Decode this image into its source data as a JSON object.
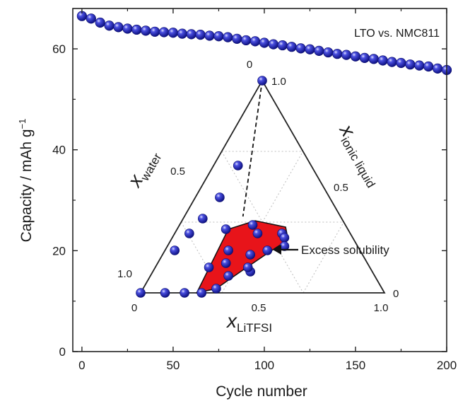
{
  "chart_data": [
    {
      "type": "scatter",
      "title": "",
      "legend": "LTO vs. NMC811",
      "xlabel": "Cycle number",
      "ylabel_main": "Capacity / mAh g",
      "ylabel_sup": "−1",
      "xlim": [
        -5,
        200
      ],
      "ylim": [
        0,
        68
      ],
      "xticks": [
        0,
        50,
        100,
        150,
        200
      ],
      "yticks": [
        0,
        20,
        40,
        60
      ],
      "grid": false,
      "series": [
        {
          "color": "#1f22b5",
          "x": [
            0,
            5,
            10,
            15,
            20,
            25,
            30,
            35,
            40,
            45,
            50,
            55,
            60,
            65,
            70,
            75,
            80,
            85,
            90,
            95,
            100,
            105,
            110,
            115,
            120,
            125,
            130,
            135,
            140,
            145,
            150,
            155,
            160,
            165,
            170,
            175,
            180,
            185,
            190,
            195,
            200
          ],
          "y": [
            66.5,
            66.0,
            65.2,
            64.6,
            64.3,
            64.0,
            63.8,
            63.6,
            63.4,
            63.3,
            63.2,
            63.0,
            62.9,
            62.8,
            62.6,
            62.5,
            62.3,
            62.0,
            61.7,
            61.5,
            61.2,
            60.9,
            60.7,
            60.4,
            60.1,
            59.9,
            59.6,
            59.3,
            59.0,
            58.8,
            58.5,
            58.2,
            58.0,
            57.7,
            57.4,
            57.2,
            56.9,
            56.7,
            56.5,
            56.1,
            55.8
          ]
        }
      ]
    },
    {
      "type": "ternary",
      "axes": {
        "left": {
          "label": "x",
          "sub": "water",
          "ticks": [
            "0",
            "0.5",
            "1.0"
          ]
        },
        "right": {
          "label": "x",
          "sub": "ionic liquid",
          "ticks": [
            "0.5",
            "0"
          ]
        },
        "bottom": {
          "label": "x",
          "sub": "LiTFSI",
          "ticks": [
            "0",
            "0.5",
            "1.0"
          ]
        },
        "apex_label": "1.0"
      },
      "annotation": "Excess solubility",
      "region_color": "#e8141a",
      "points_note": "compositions given as (x_LiTFSI, x_ionic_liquid)",
      "points": [
        [
          0.0,
          1.0
        ],
        [
          0.0,
          0.0
        ],
        [
          0.1,
          0.0
        ],
        [
          0.18,
          0.0
        ],
        [
          0.25,
          0.0
        ],
        [
          0.04,
          0.2
        ],
        [
          0.06,
          0.28
        ],
        [
          0.08,
          0.35
        ],
        [
          0.1,
          0.45
        ],
        [
          0.2,
          0.3
        ],
        [
          0.1,
          0.6
        ],
        [
          0.22,
          0.12
        ],
        [
          0.26,
          0.2
        ],
        [
          0.3,
          0.32
        ],
        [
          0.34,
          0.28
        ],
        [
          0.36,
          0.18
        ],
        [
          0.4,
          0.1
        ],
        [
          0.42,
          0.2
        ],
        [
          0.44,
          0.28
        ],
        [
          0.46,
          0.26
        ],
        [
          0.32,
          0.08
        ],
        [
          0.3,
          0.02
        ],
        [
          0.38,
          0.12
        ],
        [
          0.48,
          0.22
        ],
        [
          0.28,
          0.14
        ]
      ]
    }
  ]
}
